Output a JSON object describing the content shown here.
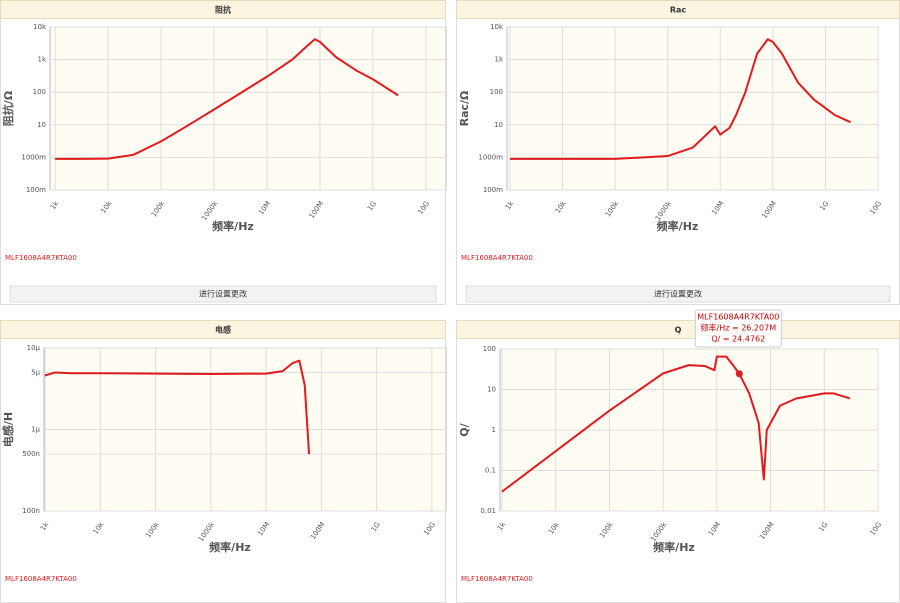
{
  "chart_data": [
    {
      "type": "line",
      "title": "阻抗",
      "x_label": "频率/Hz",
      "y_label": "阻抗/Ω",
      "button": "进行设置更改",
      "log_x": true,
      "log_y": true,
      "grid": true,
      "x": [
        1000,
        3000,
        10000,
        30000,
        100000,
        300000,
        1000000,
        3000000,
        10000000,
        30000000,
        60000000,
        80000000,
        100000000,
        200000000,
        500000000,
        1000000000,
        3000000000
      ],
      "series": [
        {
          "name": "MLF1608A4R7KTA00",
          "color": "#e31a1c",
          "values": [
            0.9,
            0.9,
            0.92,
            1.2,
            3.1,
            8.9,
            29.5,
            89,
            300,
            1000,
            2800,
            4200,
            3500,
            1200,
            450,
            250,
            80
          ]
        }
      ],
      "xlim": [
        800,
        24000000000
      ],
      "ylim": [
        0.1,
        10000
      ],
      "xticks": [
        {
          "value": 1000,
          "label": "1k"
        },
        {
          "value": 10000,
          "label": "10k"
        },
        {
          "value": 100000,
          "label": "100k"
        },
        {
          "value": 1000000,
          "label": "1000k"
        },
        {
          "value": 10000000,
          "label": "10M"
        },
        {
          "value": 100000000,
          "label": "100M"
        },
        {
          "value": 1000000000,
          "label": "1G"
        },
        {
          "value": 10000000000,
          "label": "10G"
        }
      ],
      "yticks": [
        {
          "value": 0.1,
          "label": "100m"
        },
        {
          "value": 1,
          "label": "1000m"
        },
        10,
        100,
        {
          "value": 1000,
          "label": "1k"
        },
        {
          "value": 10000,
          "label": "10k"
        }
      ]
    },
    {
      "type": "line",
      "title": "Rac",
      "x_label": "频率/Hz",
      "y_label": "Rac/Ω",
      "button": "进行设置更改",
      "log_x": true,
      "log_y": true,
      "grid": true,
      "x": [
        1000,
        10000,
        100000,
        1000000,
        3000000,
        8000000,
        10000000,
        15000000,
        20000000,
        30000000,
        50000000,
        80000000,
        100000000,
        150000000,
        300000000,
        600000000,
        1500000000,
        3000000000
      ],
      "series": [
        {
          "name": "MLF1608A4R7KTA00",
          "color": "#e31a1c",
          "values": [
            0.9,
            0.9,
            0.9,
            1.1,
            2,
            9,
            5,
            8,
            20,
            100,
            1500,
            4200,
            3500,
            1500,
            200,
            60,
            20,
            12
          ]
        }
      ],
      "xlim": [
        880,
        10000000000
      ],
      "ylim": [
        0.1,
        10000
      ],
      "xticks": [
        {
          "value": 1000,
          "label": "1k"
        },
        {
          "value": 10000,
          "label": "10k"
        },
        {
          "value": 100000,
          "label": "100k"
        },
        {
          "value": 1000000,
          "label": "1000k"
        },
        {
          "value": 10000000,
          "label": "10M"
        },
        {
          "value": 100000000,
          "label": "100M"
        },
        {
          "value": 1000000000,
          "label": "1G"
        },
        {
          "value": 10000000000,
          "label": "10G"
        }
      ],
      "yticks": [
        {
          "value": 0.1,
          "label": "100m"
        },
        {
          "value": 1,
          "label": "1000m"
        },
        10,
        100,
        {
          "value": 1000,
          "label": "1k"
        },
        {
          "value": 10000,
          "label": "10k"
        }
      ]
    },
    {
      "type": "line",
      "title": "电感",
      "x_label": "频率/Hz",
      "y_label": "电感/H",
      "log_x": true,
      "log_y": true,
      "grid": true,
      "x": [
        1000,
        1500,
        3000,
        10000,
        100000,
        1000000,
        10000000,
        20000000,
        30000000,
        40000000,
        50000000,
        60000000
      ],
      "series": [
        {
          "name": "MLF1608A4R7KTA00",
          "color": "#e31a1c",
          "values": [
            4.6e-06,
            5e-06,
            4.9e-06,
            4.9e-06,
            4.85e-06,
            4.8e-06,
            4.85e-06,
            5.2e-06,
            6.5e-06,
            7e-06,
            3.5e-06,
            5e-07
          ]
        }
      ],
      "xlim": [
        960,
        18000000000
      ],
      "ylim": [
        1e-07,
        1e-05
      ],
      "xticks": [
        {
          "value": 1000,
          "label": "1k"
        },
        {
          "value": 10000,
          "label": "10k"
        },
        {
          "value": 100000,
          "label": "100k"
        },
        {
          "value": 1000000,
          "label": "1000k"
        },
        {
          "value": 10000000,
          "label": "10M"
        },
        {
          "value": 100000000,
          "label": "100M"
        },
        {
          "value": 1000000000,
          "label": "1G"
        },
        {
          "value": 10000000000,
          "label": "10G"
        }
      ],
      "yticks": [
        {
          "value": 1e-07,
          "label": "100n"
        },
        {
          "value": 5e-07,
          "label": "500n"
        },
        {
          "value": 1e-06,
          "label": "1µ"
        },
        {
          "value": 5e-06,
          "label": "5µ"
        },
        {
          "value": 1e-05,
          "label": "10µ"
        }
      ]
    },
    {
      "type": "line",
      "title": "Q",
      "x_label": "频率/Hz",
      "y_label": "Q/",
      "log_x": true,
      "log_y": true,
      "grid": true,
      "x": [
        1000,
        10000,
        100000,
        1000000,
        3000000,
        6000000,
        9000000,
        10000000,
        15000000,
        20000000,
        26207000,
        40000000,
        60000000,
        75000000,
        85000000,
        150000000,
        300000000,
        1000000000,
        1500000000,
        3000000000
      ],
      "series": [
        {
          "name": "MLF1608A4R7KTA00",
          "color": "#e31a1c",
          "values": [
            0.03,
            0.3,
            3,
            25,
            40,
            38,
            30,
            65,
            65,
            40,
            24.4762,
            8,
            1.5,
            0.06,
            1,
            4,
            6,
            8,
            8,
            6
          ]
        }
      ],
      "xlim": [
        920,
        10000000000
      ],
      "ylim": [
        0.01,
        100
      ],
      "xticks": [
        {
          "value": 1000,
          "label": "1k"
        },
        {
          "value": 10000,
          "label": "10k"
        },
        {
          "value": 100000,
          "label": "100k"
        },
        {
          "value": 1000000,
          "label": "1000k"
        },
        {
          "value": 10000000,
          "label": "10M"
        },
        {
          "value": 100000000,
          "label": "100M"
        },
        {
          "value": 1000000000,
          "label": "1G"
        },
        {
          "value": 10000000000,
          "label": "10G"
        }
      ],
      "yticks": [
        0.01,
        0.1,
        1,
        10,
        100
      ],
      "tooltip": {
        "x": 26207000,
        "y": 24.4762,
        "x_text": "频率/Hz = 26.207M",
        "y_text": "Q/ = 24.4762"
      }
    }
  ]
}
